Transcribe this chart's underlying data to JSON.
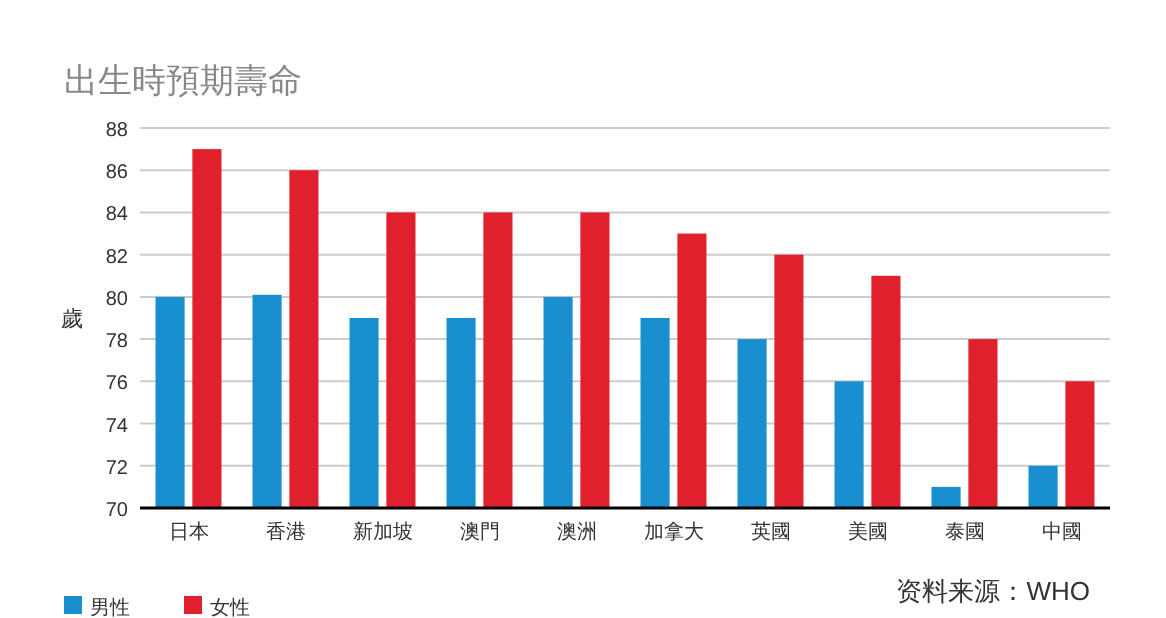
{
  "chart_data": {
    "type": "bar",
    "title": "出生時預期壽命",
    "ylabel": "歲",
    "categories": [
      "日本",
      "香港",
      "新加坡",
      "澳門",
      "澳洲",
      "加拿大",
      "英國",
      "美國",
      "泰國",
      "中國"
    ],
    "series": [
      {
        "name": "男性",
        "color": "#1a8fd0",
        "values": [
          80,
          80.1,
          79,
          79,
          80,
          79,
          78,
          76,
          71,
          72
        ]
      },
      {
        "name": "女性",
        "color": "#e0202c",
        "values": [
          87,
          86,
          84,
          84,
          84,
          83,
          82,
          81,
          78,
          76
        ]
      }
    ],
    "ylim": [
      70,
      88
    ],
    "yticks": [
      70,
      72,
      74,
      76,
      78,
      80,
      82,
      84,
      86,
      88
    ],
    "grid": "y",
    "legend": "bottom left",
    "annotations": [
      "资料来源：WHO"
    ]
  }
}
